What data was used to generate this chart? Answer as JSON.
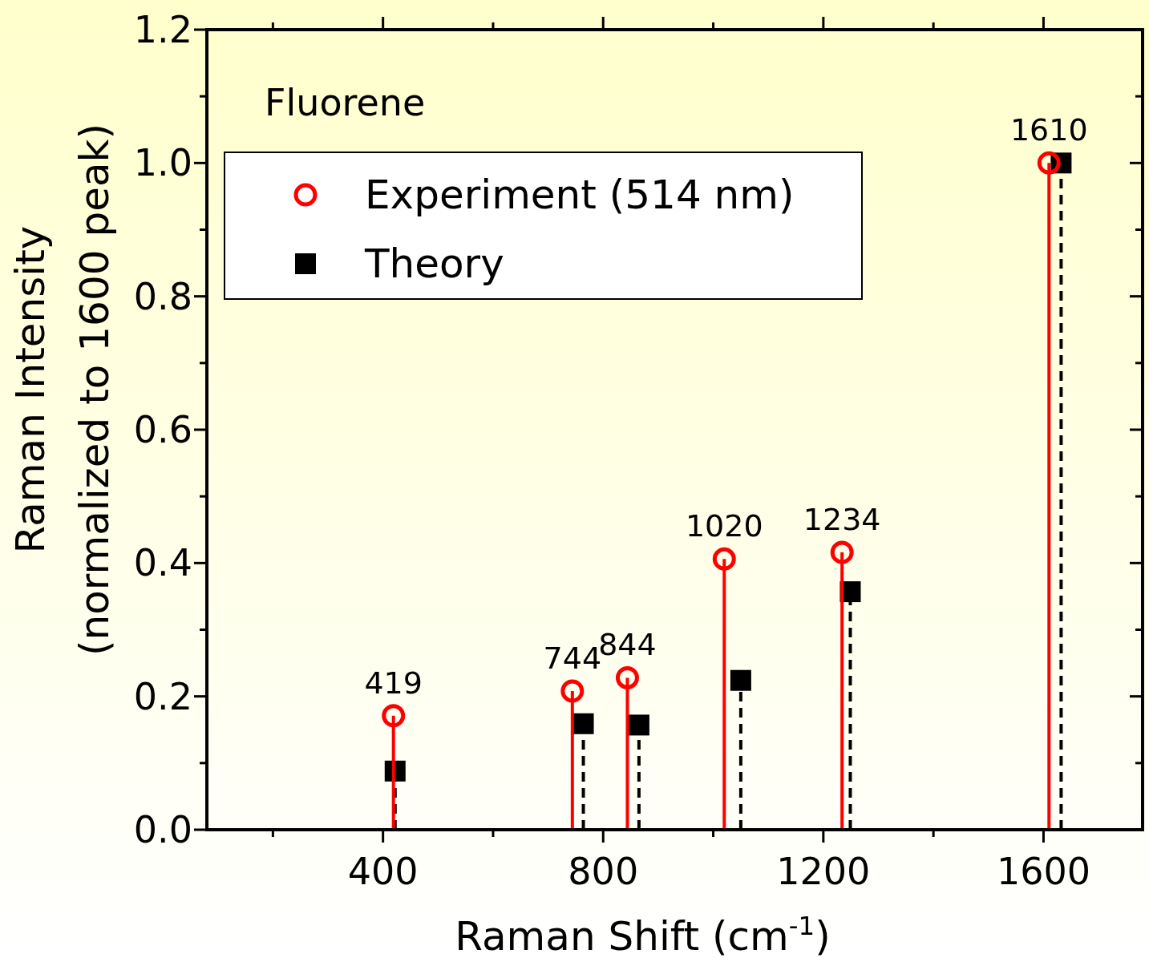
{
  "chart_data": {
    "type": "lollipop",
    "title": "Fluorene",
    "xlabel": "Raman Shift (cm$^{-1}$)",
    "ylabel": "Raman Intensity\n(normalized to 1600 peak)",
    "xlim": [
      80,
      1780
    ],
    "xticks": [
      {
        "value": 200,
        "label": null
      },
      400,
      {
        "value": 600,
        "label": null
      },
      800,
      {
        "value": 1000,
        "label": null
      },
      1200,
      {
        "value": 1400,
        "label": null
      },
      1600
    ],
    "ylim": [
      0,
      1.2
    ],
    "yticks": [
      {
        "value": 0,
        "label": "0.0"
      },
      {
        "value": 0.1,
        "label": null
      },
      0.2,
      {
        "value": 0.3,
        "label": null
      },
      0.4,
      {
        "value": 0.5,
        "label": null
      },
      0.6,
      {
        "value": 0.7,
        "label": null
      },
      0.8,
      {
        "value": 0.9,
        "label": null
      },
      {
        "value": 1,
        "label": "1.0"
      },
      {
        "value": 1.1,
        "label": null
      },
      1.2
    ],
    "legend": "top left",
    "grid": false,
    "series": [
      {
        "name": "Experiment (514 nm)",
        "color": "#ff0000",
        "marker": "circle",
        "line_style": "solid",
        "x": [
          419,
          744,
          844,
          1020,
          1234,
          1610
        ],
        "values": [
          0.171,
          0.208,
          0.228,
          0.406,
          0.416,
          1.0
        ]
      },
      {
        "name": "Theory",
        "color": "#000000",
        "marker": "square",
        "line_style": "dashed",
        "x": [
          422,
          764,
          865,
          1050,
          1249,
          1632
        ],
        "values": [
          0.088,
          0.159,
          0.157,
          0.224,
          0.357,
          1.0
        ]
      }
    ],
    "annotations": [
      {
        "text": "419",
        "x": 419,
        "y": 0.171
      },
      {
        "text": "744",
        "x": 744,
        "y": 0.208
      },
      {
        "text": "844",
        "x": 844,
        "y": 0.228
      },
      {
        "text": "1020",
        "x": 1020,
        "y": 0.406
      },
      {
        "text": "1234",
        "x": 1234,
        "y": 0.416
      },
      {
        "text": "1610",
        "x": 1610,
        "y": 1.0
      }
    ]
  }
}
